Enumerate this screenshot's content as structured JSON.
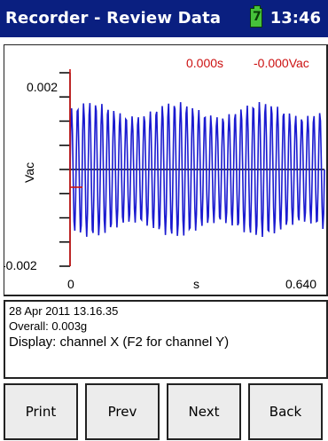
{
  "titlebar": {
    "title": "Recorder - Review Data",
    "battery_glyph": "7",
    "time": "13:46",
    "bg_color": "#0a1f80"
  },
  "plot": {
    "cursor_time": "0.000s",
    "cursor_value": "-0.000Vac",
    "cursor_color": "#cc1111",
    "trace_color": "#1a1ad0"
  },
  "chart_data": {
    "type": "line",
    "xlabel": "s",
    "ylabel": "Vac",
    "xlim": [
      0,
      0.64
    ],
    "ylim": [
      -0.002,
      0.002
    ],
    "x_tick_labels": [
      "0",
      "0.640"
    ],
    "y_tick_labels": [
      "0.002",
      "-0.002"
    ],
    "series": [
      {
        "samples": 320,
        "cycles": 42,
        "amplitude": 0.00125,
        "amplitude_variation": 0.00015
      }
    ]
  },
  "info": {
    "datetime": "28 Apr 2011 13.16.35",
    "overall": "Overall: 0.003g",
    "display": "Display: channel X (F2 for channel Y)"
  },
  "buttons": {
    "print": "Print",
    "prev": "Prev",
    "next": "Next",
    "back": "Back"
  }
}
